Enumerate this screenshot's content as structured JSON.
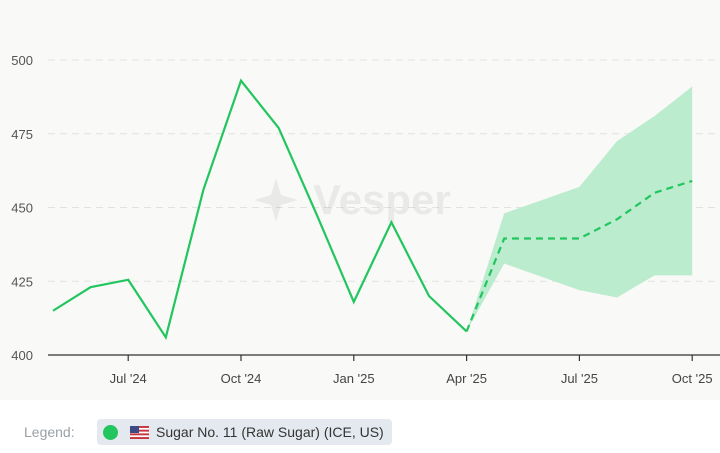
{
  "chart_data": {
    "type": "line",
    "title": "",
    "xlabel": "",
    "ylabel": "",
    "ylim": [
      400,
      500
    ],
    "yticks": [
      400,
      425,
      450,
      475,
      500
    ],
    "xtick_labels": [
      "Jul '24",
      "Oct '24",
      "Jan '25",
      "Apr '25",
      "Jul '25",
      "Oct '25"
    ],
    "grid": "horizontal dashed",
    "watermark": "Vesper",
    "series": [
      {
        "name": "Sugar No. 11 (Raw Sugar) (ICE, US)",
        "kind": "historical",
        "color": "#22c55e",
        "x": [
          "May '24",
          "Jun '24",
          "Jul '24",
          "Aug '24",
          "Sep '24",
          "Oct '24",
          "Nov '24",
          "Dec '24",
          "Jan '25",
          "Feb '25",
          "Mar '25",
          "Apr '25"
        ],
        "values": [
          415,
          423,
          425.5,
          406,
          456,
          493,
          477,
          448,
          418,
          445,
          420,
          408
        ]
      },
      {
        "name": "Forecast",
        "kind": "forecast",
        "style": "dashed",
        "color": "#22c55e",
        "x": [
          "Apr '25",
          "May '25",
          "Jun '25",
          "Jul '25",
          "Aug '25",
          "Sep '25",
          "Oct '25"
        ],
        "values": [
          408,
          439.5,
          439.5,
          439.5,
          446,
          455,
          459
        ]
      },
      {
        "name": "Forecast range",
        "kind": "band",
        "color": "#b7ebcb",
        "x": [
          "Apr '25",
          "May '25",
          "Jun '25",
          "Jul '25",
          "Aug '25",
          "Sep '25",
          "Oct '25"
        ],
        "upper": [
          408,
          448,
          452.5,
          457,
          472.5,
          481,
          491
        ],
        "lower": [
          408,
          431,
          426.5,
          422,
          419.5,
          427,
          427
        ]
      }
    ],
    "legend_position": "bottom"
  },
  "legend": {
    "label": "Legend:",
    "items": [
      {
        "text": "Sugar No. 11 (Raw Sugar) (ICE, US)",
        "color": "#22c55e",
        "flag": "us-flag-icon"
      }
    ]
  }
}
